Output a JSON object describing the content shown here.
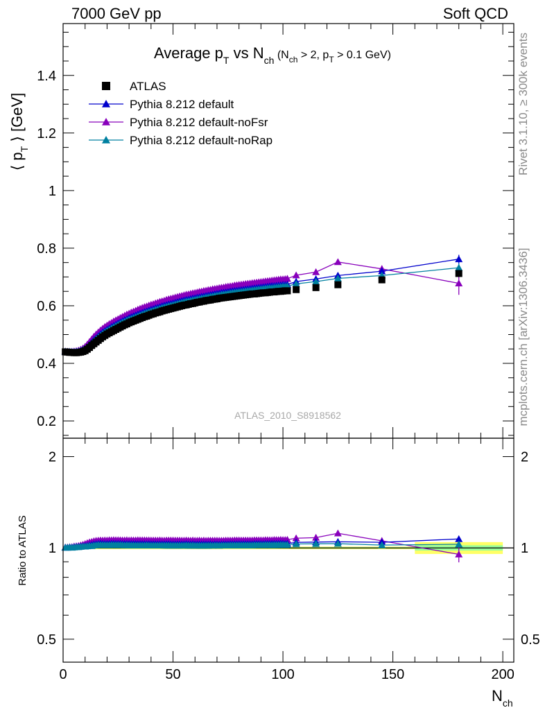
{
  "header": {
    "left": "7000 GeV pp",
    "right": "Soft QCD"
  },
  "plot_title": {
    "main_a": "Average p",
    "main_a_sub": "T",
    "main_b": " vs N",
    "main_b_sub": "ch",
    "cond_a": " (N",
    "cond_a_sub": "ch",
    "cond_b": " > 2, p",
    "cond_b_sub": "T",
    "cond_c": " > 0.1 GeV)"
  },
  "watermark": "ATLAS_2010_S8918562",
  "side_texts": {
    "rivet": "Rivet 3.1.10, ≥ 300k events",
    "mcplots": "mcplots.cern.ch [arXiv:1306.3436]"
  },
  "ylabel_main": {
    "a": "⟨ p",
    "sub": "T",
    "b": " ⟩  [GeV]"
  },
  "ylabel_ratio": "Ratio to ATLAS",
  "xlabel": {
    "a": "N",
    "sub": "ch"
  },
  "colors": {
    "data": "#000000",
    "default": "#0000cc",
    "noFsr": "#8800bb",
    "noRap": "#0080a0",
    "band_inner": "#99ff99",
    "band_outer": "#ffff66"
  },
  "chart_data": {
    "type": "scatter",
    "xlim": [
      0,
      205
    ],
    "ylim_main": [
      0.14,
      1.58
    ],
    "ylim_ratio": [
      0.42,
      2.3
    ],
    "x_ticks": [
      0,
      50,
      100,
      150,
      200
    ],
    "x_tick_labels": [
      "0",
      "50",
      "100",
      "150",
      "200"
    ],
    "y_ticks_main": [
      0.2,
      0.4,
      0.6,
      0.8,
      1,
      1.2,
      1.4
    ],
    "y_tick_labels_main": [
      "0.2",
      "0.4",
      "0.6",
      "0.8",
      "1",
      "1.2",
      "1.4"
    ],
    "y_ticks_ratio": [
      0.5,
      1,
      2
    ],
    "y_tick_labels_ratio": [
      "0.5",
      "1",
      "2"
    ],
    "legend": [
      {
        "key": "data",
        "label": "ATLAS",
        "marker": "square"
      },
      {
        "key": "default",
        "label": "Pythia 8.212 default",
        "marker": "triangle"
      },
      {
        "key": "noFsr",
        "label": "Pythia 8.212 default-noFsr",
        "marker": "triangle"
      },
      {
        "key": "noRap",
        "label": "Pythia 8.212 default-noRap",
        "marker": "triangle"
      }
    ],
    "x": [
      1,
      2,
      3,
      4,
      5,
      6,
      7,
      8,
      9,
      10,
      11,
      12,
      13,
      14,
      15,
      16,
      17,
      18,
      19,
      20,
      21,
      22,
      23,
      24,
      25,
      26,
      27,
      28,
      29,
      30,
      31,
      32,
      33,
      34,
      35,
      36,
      37,
      38,
      39,
      40,
      41,
      42,
      43,
      44,
      45,
      46,
      47,
      48,
      49,
      50,
      51,
      52,
      53,
      54,
      55,
      56,
      57,
      58,
      59,
      60,
      61,
      62,
      63,
      64,
      65,
      66,
      67,
      68,
      69,
      70,
      71,
      72,
      73,
      74,
      75,
      76,
      77,
      78,
      79,
      80,
      81,
      82,
      83,
      84,
      85,
      86,
      87,
      88,
      89,
      90,
      91,
      92,
      93,
      94,
      95,
      96,
      97,
      98,
      99,
      100,
      101,
      102,
      106,
      115,
      125,
      145,
      180
    ],
    "series": [
      {
        "name": "ATLAS",
        "key": "data",
        "values": [
          0.44,
          0.439,
          0.438,
          0.438,
          0.437,
          0.437,
          0.438,
          0.439,
          0.441,
          0.444,
          0.449,
          0.455,
          0.462,
          0.468,
          0.474,
          0.48,
          0.486,
          0.492,
          0.497,
          0.502,
          0.506,
          0.51,
          0.514,
          0.518,
          0.522,
          0.526,
          0.53,
          0.534,
          0.537,
          0.541,
          0.544,
          0.547,
          0.55,
          0.553,
          0.556,
          0.559,
          0.562,
          0.564,
          0.567,
          0.57,
          0.572,
          0.575,
          0.577,
          0.579,
          0.582,
          0.584,
          0.586,
          0.588,
          0.59,
          0.592,
          0.594,
          0.596,
          0.598,
          0.6,
          0.602,
          0.603,
          0.605,
          0.607,
          0.608,
          0.61,
          0.612,
          0.613,
          0.615,
          0.616,
          0.618,
          0.619,
          0.62,
          0.622,
          0.623,
          0.624,
          0.626,
          0.627,
          0.628,
          0.629,
          0.63,
          0.631,
          0.632,
          0.633,
          0.634,
          0.635,
          0.636,
          0.637,
          0.638,
          0.639,
          0.64,
          0.641,
          0.641,
          0.642,
          0.643,
          0.644,
          0.645,
          0.645,
          0.646,
          0.647,
          0.648,
          0.648,
          0.649,
          0.65,
          0.65,
          0.651,
          0.652,
          0.652,
          0.656,
          0.663,
          0.673,
          0.69,
          0.712
        ],
        "errors": [
          0.003,
          0.003,
          0.003,
          0.003,
          0.003,
          0.003,
          0.003,
          0.003,
          0.003,
          0.003,
          0.003,
          0.003,
          0.003,
          0.003,
          0.003,
          0.003,
          0.003,
          0.003,
          0.003,
          0.003,
          0.003,
          0.003,
          0.003,
          0.003,
          0.003,
          0.003,
          0.003,
          0.003,
          0.003,
          0.003,
          0.003,
          0.003,
          0.003,
          0.003,
          0.003,
          0.003,
          0.003,
          0.003,
          0.003,
          0.003,
          0.003,
          0.003,
          0.003,
          0.003,
          0.003,
          0.003,
          0.003,
          0.003,
          0.003,
          0.003,
          0.003,
          0.003,
          0.003,
          0.003,
          0.003,
          0.003,
          0.003,
          0.003,
          0.003,
          0.003,
          0.003,
          0.003,
          0.003,
          0.003,
          0.003,
          0.003,
          0.003,
          0.003,
          0.003,
          0.003,
          0.003,
          0.003,
          0.003,
          0.003,
          0.003,
          0.003,
          0.003,
          0.003,
          0.003,
          0.003,
          0.003,
          0.003,
          0.003,
          0.003,
          0.003,
          0.003,
          0.003,
          0.003,
          0.003,
          0.003,
          0.003,
          0.003,
          0.003,
          0.003,
          0.003,
          0.003,
          0.003,
          0.003,
          0.003,
          0.003,
          0.003,
          0.003,
          0.004,
          0.005,
          0.006,
          0.008,
          0.012
        ]
      },
      {
        "name": "Pythia 8.212 default",
        "key": "default",
        "values": [
          0.441,
          0.44,
          0.44,
          0.44,
          0.44,
          0.441,
          0.442,
          0.444,
          0.447,
          0.451,
          0.457,
          0.465,
          0.473,
          0.481,
          0.488,
          0.495,
          0.502,
          0.508,
          0.513,
          0.518,
          0.522,
          0.527,
          0.531,
          0.535,
          0.539,
          0.543,
          0.547,
          0.551,
          0.554,
          0.558,
          0.561,
          0.564,
          0.567,
          0.57,
          0.573,
          0.576,
          0.579,
          0.581,
          0.584,
          0.587,
          0.589,
          0.592,
          0.594,
          0.596,
          0.599,
          0.601,
          0.603,
          0.605,
          0.607,
          0.609,
          0.611,
          0.613,
          0.615,
          0.617,
          0.619,
          0.621,
          0.622,
          0.624,
          0.626,
          0.627,
          0.629,
          0.63,
          0.632,
          0.633,
          0.635,
          0.636,
          0.638,
          0.639,
          0.641,
          0.642,
          0.643,
          0.645,
          0.646,
          0.647,
          0.648,
          0.65,
          0.651,
          0.652,
          0.653,
          0.654,
          0.655,
          0.656,
          0.657,
          0.658,
          0.659,
          0.66,
          0.661,
          0.662,
          0.663,
          0.664,
          0.665,
          0.666,
          0.667,
          0.668,
          0.669,
          0.669,
          0.67,
          0.671,
          0.672,
          0.673,
          0.673,
          0.674,
          0.684,
          0.693,
          0.705,
          0.72,
          0.762
        ],
        "errors": [
          0.002,
          0.002,
          0.002,
          0.002,
          0.002,
          0.002,
          0.002,
          0.002,
          0.002,
          0.002,
          0.002,
          0.002,
          0.002,
          0.002,
          0.002,
          0.002,
          0.002,
          0.002,
          0.002,
          0.002,
          0.002,
          0.002,
          0.002,
          0.002,
          0.002,
          0.002,
          0.002,
          0.002,
          0.002,
          0.002,
          0.002,
          0.002,
          0.002,
          0.002,
          0.002,
          0.002,
          0.002,
          0.002,
          0.002,
          0.002,
          0.002,
          0.002,
          0.002,
          0.002,
          0.002,
          0.002,
          0.002,
          0.002,
          0.002,
          0.002,
          0.002,
          0.002,
          0.002,
          0.002,
          0.002,
          0.002,
          0.002,
          0.002,
          0.002,
          0.002,
          0.002,
          0.002,
          0.002,
          0.002,
          0.002,
          0.002,
          0.002,
          0.002,
          0.002,
          0.002,
          0.002,
          0.002,
          0.002,
          0.002,
          0.002,
          0.002,
          0.002,
          0.002,
          0.002,
          0.002,
          0.002,
          0.002,
          0.002,
          0.002,
          0.002,
          0.002,
          0.002,
          0.002,
          0.002,
          0.002,
          0.002,
          0.002,
          0.002,
          0.002,
          0.002,
          0.002,
          0.002,
          0.002,
          0.002,
          0.002,
          0.002,
          0.002,
          0.003,
          0.004,
          0.005,
          0.008,
          0.015
        ]
      },
      {
        "name": "Pythia 8.212 default-noFsr",
        "key": "noFsr",
        "values": [
          0.442,
          0.441,
          0.441,
          0.441,
          0.442,
          0.443,
          0.445,
          0.448,
          0.452,
          0.458,
          0.466,
          0.475,
          0.484,
          0.493,
          0.501,
          0.508,
          0.515,
          0.521,
          0.527,
          0.532,
          0.537,
          0.541,
          0.546,
          0.55,
          0.554,
          0.558,
          0.562,
          0.566,
          0.57,
          0.573,
          0.577,
          0.58,
          0.583,
          0.587,
          0.59,
          0.593,
          0.596,
          0.598,
          0.601,
          0.604,
          0.606,
          0.609,
          0.611,
          0.614,
          0.616,
          0.618,
          0.621,
          0.623,
          0.625,
          0.627,
          0.629,
          0.631,
          0.633,
          0.635,
          0.637,
          0.639,
          0.64,
          0.642,
          0.644,
          0.645,
          0.647,
          0.649,
          0.65,
          0.652,
          0.653,
          0.655,
          0.656,
          0.658,
          0.659,
          0.66,
          0.662,
          0.663,
          0.664,
          0.666,
          0.667,
          0.668,
          0.669,
          0.671,
          0.672,
          0.673,
          0.674,
          0.675,
          0.676,
          0.677,
          0.678,
          0.679,
          0.68,
          0.681,
          0.682,
          0.683,
          0.684,
          0.685,
          0.686,
          0.687,
          0.688,
          0.689,
          0.69,
          0.691,
          0.692,
          0.692,
          0.693,
          0.694,
          0.706,
          0.717,
          0.752,
          0.728,
          0.678
        ],
        "errors": [
          0.002,
          0.002,
          0.002,
          0.002,
          0.002,
          0.002,
          0.002,
          0.002,
          0.002,
          0.002,
          0.002,
          0.002,
          0.002,
          0.002,
          0.002,
          0.002,
          0.002,
          0.002,
          0.002,
          0.002,
          0.002,
          0.002,
          0.002,
          0.002,
          0.002,
          0.002,
          0.002,
          0.002,
          0.002,
          0.002,
          0.002,
          0.002,
          0.002,
          0.002,
          0.002,
          0.002,
          0.002,
          0.002,
          0.002,
          0.002,
          0.002,
          0.002,
          0.002,
          0.002,
          0.002,
          0.002,
          0.002,
          0.002,
          0.002,
          0.002,
          0.002,
          0.002,
          0.002,
          0.002,
          0.002,
          0.002,
          0.002,
          0.002,
          0.002,
          0.002,
          0.002,
          0.002,
          0.002,
          0.002,
          0.002,
          0.002,
          0.002,
          0.002,
          0.002,
          0.002,
          0.002,
          0.002,
          0.002,
          0.002,
          0.002,
          0.002,
          0.002,
          0.002,
          0.002,
          0.002,
          0.002,
          0.002,
          0.002,
          0.002,
          0.002,
          0.002,
          0.002,
          0.002,
          0.002,
          0.002,
          0.002,
          0.002,
          0.002,
          0.002,
          0.002,
          0.002,
          0.002,
          0.002,
          0.002,
          0.002,
          0.002,
          0.002,
          0.004,
          0.006,
          0.008,
          0.012,
          0.04
        ]
      },
      {
        "name": "Pythia 8.212 default-noRap",
        "key": "noRap",
        "values": [
          0.441,
          0.44,
          0.44,
          0.439,
          0.439,
          0.44,
          0.441,
          0.443,
          0.446,
          0.449,
          0.455,
          0.462,
          0.469,
          0.477,
          0.484,
          0.491,
          0.497,
          0.503,
          0.508,
          0.513,
          0.517,
          0.522,
          0.526,
          0.53,
          0.534,
          0.538,
          0.542,
          0.545,
          0.549,
          0.552,
          0.555,
          0.558,
          0.561,
          0.564,
          0.567,
          0.57,
          0.573,
          0.576,
          0.578,
          0.581,
          0.583,
          0.586,
          0.588,
          0.59,
          0.593,
          0.595,
          0.597,
          0.599,
          0.601,
          0.603,
          0.605,
          0.607,
          0.609,
          0.611,
          0.613,
          0.615,
          0.616,
          0.618,
          0.62,
          0.621,
          0.623,
          0.624,
          0.626,
          0.627,
          0.629,
          0.63,
          0.632,
          0.633,
          0.635,
          0.636,
          0.637,
          0.639,
          0.64,
          0.641,
          0.642,
          0.644,
          0.645,
          0.646,
          0.647,
          0.648,
          0.649,
          0.65,
          0.651,
          0.652,
          0.653,
          0.654,
          0.655,
          0.656,
          0.657,
          0.658,
          0.659,
          0.66,
          0.661,
          0.662,
          0.662,
          0.663,
          0.664,
          0.665,
          0.666,
          0.667,
          0.667,
          0.668,
          0.676,
          0.684,
          0.695,
          0.705,
          0.732
        ],
        "errors": [
          0.002,
          0.002,
          0.002,
          0.002,
          0.002,
          0.002,
          0.002,
          0.002,
          0.002,
          0.002,
          0.002,
          0.002,
          0.002,
          0.002,
          0.002,
          0.002,
          0.002,
          0.002,
          0.002,
          0.002,
          0.002,
          0.002,
          0.002,
          0.002,
          0.002,
          0.002,
          0.002,
          0.002,
          0.002,
          0.002,
          0.002,
          0.002,
          0.002,
          0.002,
          0.002,
          0.002,
          0.002,
          0.002,
          0.002,
          0.002,
          0.002,
          0.002,
          0.002,
          0.002,
          0.002,
          0.002,
          0.002,
          0.002,
          0.002,
          0.002,
          0.002,
          0.002,
          0.002,
          0.002,
          0.002,
          0.002,
          0.002,
          0.002,
          0.002,
          0.002,
          0.002,
          0.002,
          0.002,
          0.002,
          0.002,
          0.002,
          0.002,
          0.002,
          0.002,
          0.002,
          0.002,
          0.002,
          0.002,
          0.002,
          0.002,
          0.002,
          0.002,
          0.002,
          0.002,
          0.002,
          0.002,
          0.002,
          0.002,
          0.002,
          0.002,
          0.002,
          0.002,
          0.002,
          0.002,
          0.002,
          0.002,
          0.002,
          0.002,
          0.002,
          0.002,
          0.002,
          0.002,
          0.002,
          0.002,
          0.002,
          0.002,
          0.002,
          0.003,
          0.004,
          0.005,
          0.008,
          0.015
        ]
      }
    ],
    "ratio_band": [
      {
        "x": [
          14,
          160
        ],
        "inner": [
          0.995,
          1.005
        ],
        "outer": [
          0.99,
          1.01
        ]
      },
      {
        "x": [
          160,
          200
        ],
        "inner": [
          0.98,
          1.02
        ],
        "outer": [
          0.955,
          1.045
        ]
      }
    ]
  }
}
